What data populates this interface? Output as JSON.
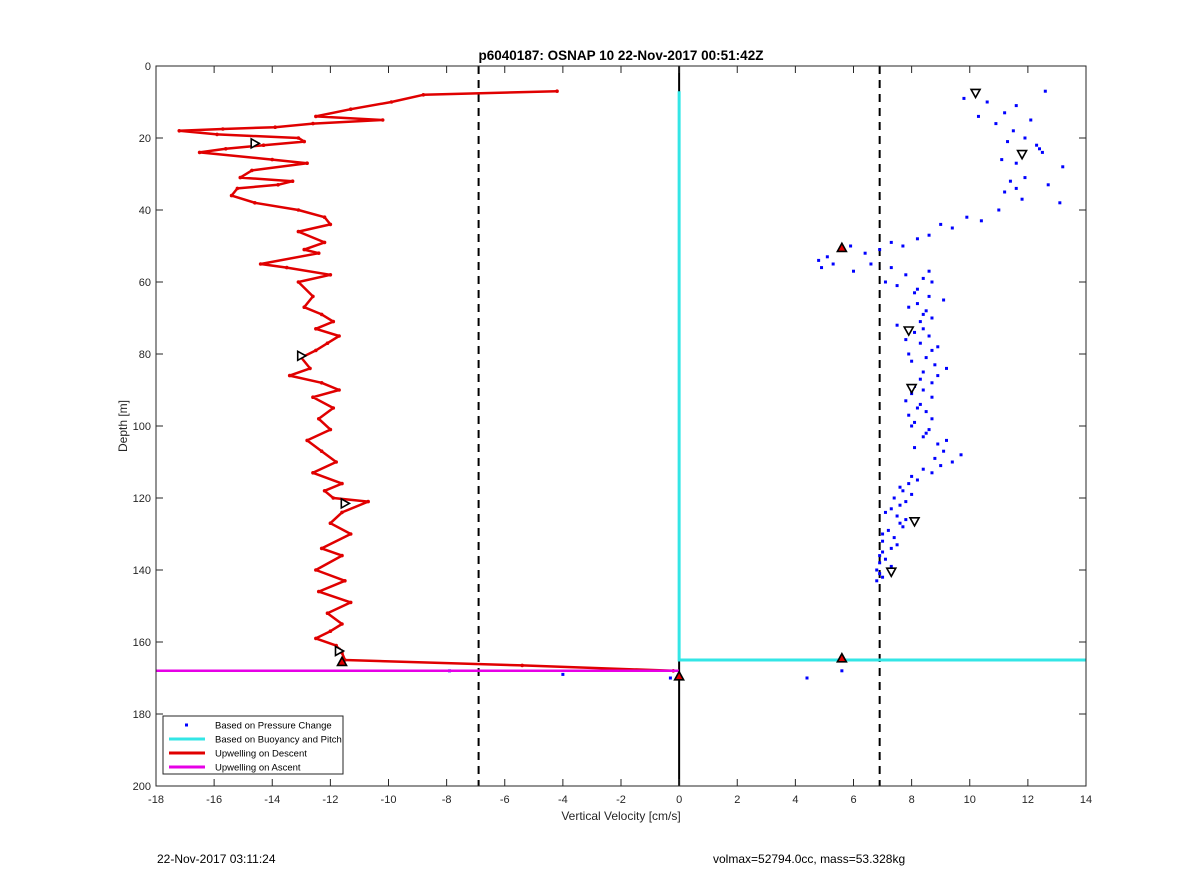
{
  "chart_data": {
    "type": "scatter",
    "title": "p6040187: OSNAP 10 22-Nov-2017 00:51:42Z",
    "xlabel": "Vertical Velocity [cm/s]",
    "ylabel": "Depth [m]",
    "xlim": [
      -18,
      14
    ],
    "ylim": [
      0,
      200
    ],
    "y_reversed": true,
    "grid": true,
    "xticks": [
      -18,
      -16,
      -14,
      -12,
      -10,
      -8,
      -6,
      -4,
      -2,
      0,
      2,
      4,
      6,
      8,
      10,
      12,
      14
    ],
    "yticks": [
      0,
      20,
      40,
      60,
      80,
      100,
      120,
      140,
      160,
      180,
      200
    ],
    "legend_position": "bottom-left",
    "series": [
      {
        "name": "Based on Pressure Change",
        "style": "points",
        "color": "#0000ff",
        "x": [
          10.2,
          12.6,
          9.8,
          10.6,
          10.3,
          11.2,
          11.6,
          10.9,
          11.5,
          12.1,
          11.3,
          11.9,
          12.3,
          12.4,
          11.8,
          11.1,
          11.6,
          12.5,
          13.2,
          11.9,
          11.4,
          11.6,
          12.7,
          11.2,
          13.1,
          11.8,
          11.0,
          10.4,
          9.9,
          9.4,
          9.0,
          8.6,
          8.2,
          7.7,
          7.3,
          6.9,
          6.4,
          5.9,
          5.1,
          4.8,
          4.9,
          5.3,
          6.0,
          6.6,
          7.3,
          7.8,
          8.6,
          7.1,
          7.5,
          8.2,
          8.4,
          8.7,
          8.1,
          8.6,
          9.1,
          8.2,
          8.5,
          7.9,
          8.4,
          8.7,
          8.3,
          7.5,
          8.1,
          8.4,
          8.6,
          7.8,
          8.3,
          8.9,
          8.7,
          7.9,
          8.5,
          8.0,
          8.8,
          9.2,
          8.4,
          8.9,
          8.3,
          8.7,
          8.1,
          8.4,
          8.0,
          8.7,
          7.8,
          8.3,
          8.2,
          8.5,
          7.9,
          8.7,
          8.1,
          8.0,
          8.6,
          8.5,
          8.4,
          9.2,
          8.9,
          8.1,
          9.1,
          9.7,
          8.8,
          9.4,
          9.0,
          8.4,
          8.7,
          8.0,
          8.2,
          7.9,
          7.6,
          7.7,
          8.0,
          7.4,
          7.8,
          7.6,
          7.3,
          7.1,
          7.5,
          7.8,
          7.6,
          7.7,
          7.2,
          7.0,
          7.4,
          7.0,
          7.5,
          7.3,
          7.0,
          6.9,
          7.1,
          6.9,
          7.3,
          6.8,
          6.9,
          7.0,
          6.8,
          4.4,
          5.6,
          -4.0,
          -7.9,
          -0.3
        ],
        "y": [
          8,
          7,
          9,
          10,
          14,
          13,
          11,
          16,
          18,
          15,
          21,
          20,
          22,
          23,
          25,
          26,
          27,
          24,
          28,
          31,
          32,
          34,
          33,
          35,
          38,
          37,
          40,
          43,
          42,
          45,
          44,
          47,
          48,
          50,
          49,
          51,
          52,
          50,
          53,
          54,
          56,
          55,
          57,
          55,
          56,
          58,
          57,
          60,
          61,
          62,
          59,
          60,
          63,
          64,
          65,
          66,
          68,
          67,
          69,
          70,
          71,
          72,
          74,
          73,
          75,
          76,
          77,
          78,
          79,
          80,
          81,
          82,
          83,
          84,
          85,
          86,
          87,
          88,
          89,
          90,
          91,
          92,
          93,
          94,
          95,
          96,
          97,
          98,
          99,
          100,
          101,
          102,
          103,
          104,
          105,
          106,
          107,
          108,
          109,
          110,
          111,
          112,
          113,
          114,
          115,
          116,
          117,
          118,
          119,
          120,
          121,
          122,
          123,
          124,
          125,
          126,
          127,
          128,
          129,
          130,
          131,
          132,
          133,
          134,
          135,
          136,
          137,
          138,
          139,
          140,
          141,
          142,
          143,
          170,
          168,
          169,
          168,
          170
        ]
      },
      {
        "name": "Based on Buoyancy and Pitch",
        "style": "line",
        "color": "#33e6e6",
        "x": [
          0,
          0,
          6.9,
          14
        ],
        "y": [
          7,
          165,
          165,
          165
        ]
      },
      {
        "name": "Upwelling on Descent",
        "style": "line",
        "color": "#e00000",
        "x": [
          -4.2,
          -8.8,
          -9.9,
          -11.3,
          -12.5,
          -10.2,
          -12.6,
          -13.9,
          -15.7,
          -17.2,
          -15.9,
          -13.1,
          -12.9,
          -14.3,
          -15.6,
          -16.5,
          -14.0,
          -12.8,
          -14.7,
          -15.1,
          -13.3,
          -13.8,
          -15.2,
          -15.4,
          -14.6,
          -13.1,
          -12.2,
          -12.0,
          -13.1,
          -12.2,
          -12.9,
          -12.4,
          -14.4,
          -13.5,
          -12.0,
          -13.1,
          -12.6,
          -12.9,
          -12.3,
          -11.9,
          -12.5,
          -11.7,
          -12.1,
          -12.5,
          -13.0,
          -12.7,
          -13.4,
          -12.3,
          -11.7,
          -12.6,
          -11.9,
          -12.4,
          -12.0,
          -12.8,
          -12.3,
          -11.8,
          -12.6,
          -11.6,
          -12.2,
          -11.9,
          -10.7,
          -11.6,
          -12.0,
          -11.3,
          -12.3,
          -11.6,
          -12.5,
          -11.5,
          -12.4,
          -11.3,
          -12.1,
          -11.6,
          -12.0,
          -12.5,
          -11.8,
          -11.7,
          -11.6,
          -11.5,
          -5.4,
          -0.2
        ],
        "y": [
          7,
          8,
          10,
          12,
          14,
          15,
          16,
          17,
          17.5,
          18,
          19,
          20,
          21,
          22,
          23,
          24,
          26,
          27,
          29,
          31,
          32,
          33,
          34,
          36,
          38,
          40,
          42,
          44,
          46,
          49,
          51,
          52,
          55,
          56,
          58,
          60,
          64,
          67,
          69,
          71,
          73,
          75,
          77,
          79,
          81,
          84,
          86,
          88,
          90,
          92,
          95,
          98,
          101,
          104,
          107,
          110,
          113,
          116,
          118,
          120,
          121,
          124,
          127,
          130,
          134,
          136,
          140,
          143,
          146,
          149,
          152,
          155,
          157,
          159,
          161,
          162,
          163,
          165,
          166.5,
          168
        ]
      },
      {
        "name": "Upwelling on Ascent",
        "style": "line",
        "color": "#e600e6",
        "x": [
          -18,
          0
        ],
        "y": [
          168,
          168
        ]
      }
    ],
    "reference_lines": {
      "zero_line_x": 0,
      "dashed_x": [
        -6.9,
        6.9
      ],
      "color": "#000000"
    },
    "triangle_markers": [
      {
        "x": 10.2,
        "y": 7.5,
        "dir": "down",
        "filled": false
      },
      {
        "x": 11.8,
        "y": 24.5,
        "dir": "down",
        "filled": false
      },
      {
        "x": 7.9,
        "y": 73.5,
        "dir": "down",
        "filled": false
      },
      {
        "x": 8.0,
        "y": 89.5,
        "dir": "down",
        "filled": false
      },
      {
        "x": 8.1,
        "y": 126.5,
        "dir": "down",
        "filled": false
      },
      {
        "x": 7.3,
        "y": 140.5,
        "dir": "down",
        "filled": false
      },
      {
        "x": -14.6,
        "y": 21.5,
        "dir": "right",
        "filled": false
      },
      {
        "x": -13.0,
        "y": 80.5,
        "dir": "right",
        "filled": false
      },
      {
        "x": -11.5,
        "y": 121.5,
        "dir": "right",
        "filled": false
      },
      {
        "x": -11.7,
        "y": 162.5,
        "dir": "right",
        "filled": false
      },
      {
        "x": 5.6,
        "y": 50.5,
        "dir": "up",
        "filled": true
      },
      {
        "x": 5.6,
        "y": 164.5,
        "dir": "up",
        "filled": true
      },
      {
        "x": -11.6,
        "y": 165.5,
        "dir": "up",
        "filled": true
      },
      {
        "x": 0.0,
        "y": 169.5,
        "dir": "up",
        "filled": true
      }
    ]
  },
  "footer": {
    "timestamp": "22-Nov-2017 03:11:24",
    "summary": "volmax=52794.0cc, mass=53.328kg"
  }
}
